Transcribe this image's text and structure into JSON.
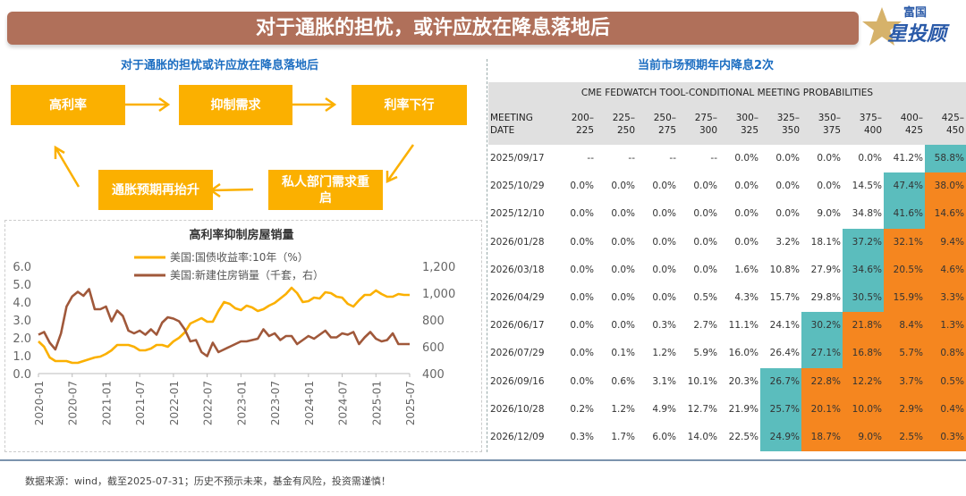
{
  "header": {
    "title": "对于通胀的担忧，或许应放在降息落地后",
    "logo": "富国星投顾",
    "logo_top": "富国",
    "logo_bottom": "星投顾"
  },
  "left": {
    "subtitle": "对于通胀的担忧或许应放在降息落地后",
    "flow": [
      "高利率",
      "抑制需求",
      "利率下行",
      "私人部门需求重启",
      "通胀预期再抬升"
    ]
  },
  "right": {
    "subtitle": "当前市场预期年内降息2次"
  },
  "colors": {
    "accent": "#fbb000",
    "banner": "#b0705a",
    "mode": "#5bbdbd",
    "above": "#f5861f",
    "yield": "#fbb000",
    "sales": "#a0583a"
  },
  "chart_data": {
    "type": "line",
    "title": "高利率抑制房屋销量",
    "x": [
      "2020-01",
      "2020-02",
      "2020-03",
      "2020-04",
      "2020-05",
      "2020-06",
      "2020-07",
      "2020-08",
      "2020-09",
      "2020-10",
      "2020-11",
      "2020-12",
      "2021-01",
      "2021-02",
      "2021-03",
      "2021-04",
      "2021-05",
      "2021-06",
      "2021-07",
      "2021-08",
      "2021-09",
      "2021-10",
      "2021-11",
      "2021-12",
      "2022-01",
      "2022-02",
      "2022-03",
      "2022-04",
      "2022-05",
      "2022-06",
      "2022-07",
      "2022-08",
      "2022-09",
      "2022-10",
      "2022-11",
      "2022-12",
      "2023-01",
      "2023-02",
      "2023-03",
      "2023-04",
      "2023-05",
      "2023-06",
      "2023-07",
      "2023-08",
      "2023-09",
      "2023-10",
      "2023-11",
      "2023-12",
      "2024-01",
      "2024-02",
      "2024-03",
      "2024-04",
      "2024-05",
      "2024-06",
      "2024-07",
      "2024-08",
      "2024-09",
      "2024-10",
      "2024-11",
      "2024-12",
      "2025-01",
      "2025-02",
      "2025-03",
      "2025-04",
      "2025-05",
      "2025-06",
      "2025-07"
    ],
    "xticks": [
      "2020-01",
      "2020-07",
      "2021-01",
      "2021-07",
      "2022-01",
      "2022-07",
      "2023-01",
      "2023-07",
      "2024-01",
      "2024-07",
      "2025-01",
      "2025-07"
    ],
    "ylim": [
      0,
      6
    ],
    "yticks": [
      "0.0",
      "1.0",
      "2.0",
      "3.0",
      "4.0",
      "5.0",
      "6.0"
    ],
    "y2lim": [
      400,
      1200
    ],
    "y2ticks": [
      "400",
      "600",
      "800",
      "1,000",
      "1,200"
    ],
    "legend": "top",
    "series": [
      {
        "name": "美国:国债收益率:10年（%）",
        "axis": "left",
        "values": [
          1.8,
          1.5,
          0.9,
          0.7,
          0.7,
          0.7,
          0.6,
          0.6,
          0.7,
          0.8,
          0.9,
          0.95,
          1.1,
          1.3,
          1.6,
          1.6,
          1.6,
          1.5,
          1.3,
          1.3,
          1.4,
          1.6,
          1.6,
          1.5,
          1.8,
          2.0,
          2.3,
          2.8,
          2.95,
          3.1,
          2.9,
          2.9,
          3.5,
          4.0,
          3.9,
          3.65,
          3.55,
          3.8,
          3.7,
          3.5,
          3.6,
          3.8,
          3.95,
          4.2,
          4.45,
          4.8,
          4.5,
          4.0,
          4.05,
          4.25,
          4.2,
          4.55,
          4.5,
          4.3,
          4.25,
          3.9,
          3.75,
          4.1,
          4.4,
          4.4,
          4.65,
          4.45,
          4.3,
          4.3,
          4.45,
          4.4,
          4.4
        ]
      },
      {
        "name": "美国:新建住房销量（千套，右）",
        "axis": "right",
        "values": [
          690,
          710,
          630,
          580,
          700,
          900,
          975,
          1010,
          980,
          1030,
          880,
          880,
          900,
          790,
          870,
          830,
          720,
          700,
          720,
          690,
          730,
          690,
          780,
          820,
          810,
          790,
          730,
          640,
          650,
          560,
          530,
          630,
          560,
          580,
          600,
          620,
          640,
          640,
          650,
          660,
          730,
          680,
          700,
          650,
          680,
          680,
          620,
          650,
          680,
          660,
          690,
          720,
          670,
          670,
          700,
          690,
          710,
          620,
          670,
          710,
          660,
          640,
          650,
          700,
          620,
          620,
          620
        ]
      }
    ]
  },
  "table": {
    "caption": "CME FEDWATCH TOOL-CONDITIONAL MEETING PROBABILITIES",
    "date_header": [
      "MEETING",
      "DATE"
    ],
    "columns": [
      [
        "200–",
        "225"
      ],
      [
        "225–",
        "250"
      ],
      [
        "250–",
        "275"
      ],
      [
        "275–",
        "300"
      ],
      [
        "300–",
        "325"
      ],
      [
        "325–",
        "350"
      ],
      [
        "350–",
        "375"
      ],
      [
        "375–",
        "400"
      ],
      [
        "400–",
        "425"
      ],
      [
        "425–",
        "450"
      ]
    ],
    "rows": [
      {
        "date": "2025/09/17",
        "mode_col": 9,
        "values": [
          "--",
          "--",
          "--",
          "--",
          "0.0%",
          "0.0%",
          "0.0%",
          "0.0%",
          "41.2%",
          "58.8%"
        ]
      },
      {
        "date": "2025/10/29",
        "mode_col": 8,
        "values": [
          "0.0%",
          "0.0%",
          "0.0%",
          "0.0%",
          "0.0%",
          "0.0%",
          "0.0%",
          "14.5%",
          "47.4%",
          "38.0%"
        ]
      },
      {
        "date": "2025/12/10",
        "mode_col": 8,
        "values": [
          "0.0%",
          "0.0%",
          "0.0%",
          "0.0%",
          "0.0%",
          "0.0%",
          "9.0%",
          "34.8%",
          "41.6%",
          "14.6%"
        ]
      },
      {
        "date": "2026/01/28",
        "mode_col": 7,
        "values": [
          "0.0%",
          "0.0%",
          "0.0%",
          "0.0%",
          "0.0%",
          "3.2%",
          "18.1%",
          "37.2%",
          "32.1%",
          "9.4%"
        ]
      },
      {
        "date": "2026/03/18",
        "mode_col": 7,
        "values": [
          "0.0%",
          "0.0%",
          "0.0%",
          "0.0%",
          "1.6%",
          "10.8%",
          "27.9%",
          "34.6%",
          "20.5%",
          "4.6%"
        ]
      },
      {
        "date": "2026/04/29",
        "mode_col": 7,
        "values": [
          "0.0%",
          "0.0%",
          "0.0%",
          "0.5%",
          "4.3%",
          "15.7%",
          "29.8%",
          "30.5%",
          "15.9%",
          "3.3%"
        ]
      },
      {
        "date": "2026/06/17",
        "mode_col": 6,
        "values": [
          "0.0%",
          "0.0%",
          "0.3%",
          "2.7%",
          "11.1%",
          "24.1%",
          "30.2%",
          "21.8%",
          "8.4%",
          "1.3%"
        ]
      },
      {
        "date": "2026/07/29",
        "mode_col": 6,
        "values": [
          "0.0%",
          "0.1%",
          "1.2%",
          "5.9%",
          "16.0%",
          "26.4%",
          "27.1%",
          "16.8%",
          "5.7%",
          "0.8%"
        ]
      },
      {
        "date": "2026/09/16",
        "mode_col": 5,
        "values": [
          "0.0%",
          "0.6%",
          "3.1%",
          "10.1%",
          "20.3%",
          "26.7%",
          "22.8%",
          "12.2%",
          "3.7%",
          "0.5%"
        ]
      },
      {
        "date": "2026/10/28",
        "mode_col": 5,
        "values": [
          "0.2%",
          "1.2%",
          "4.9%",
          "12.7%",
          "21.9%",
          "25.7%",
          "20.1%",
          "10.0%",
          "2.9%",
          "0.4%"
        ]
      },
      {
        "date": "2026/12/09",
        "mode_col": 5,
        "values": [
          "0.3%",
          "1.7%",
          "6.0%",
          "14.0%",
          "22.5%",
          "24.9%",
          "18.7%",
          "9.0%",
          "2.5%",
          "0.3%"
        ]
      }
    ]
  },
  "footer": {
    "note": "数据来源：wind，截至2025-07-31；历史不预示未来，基金有风险，投资需谨慎！"
  }
}
